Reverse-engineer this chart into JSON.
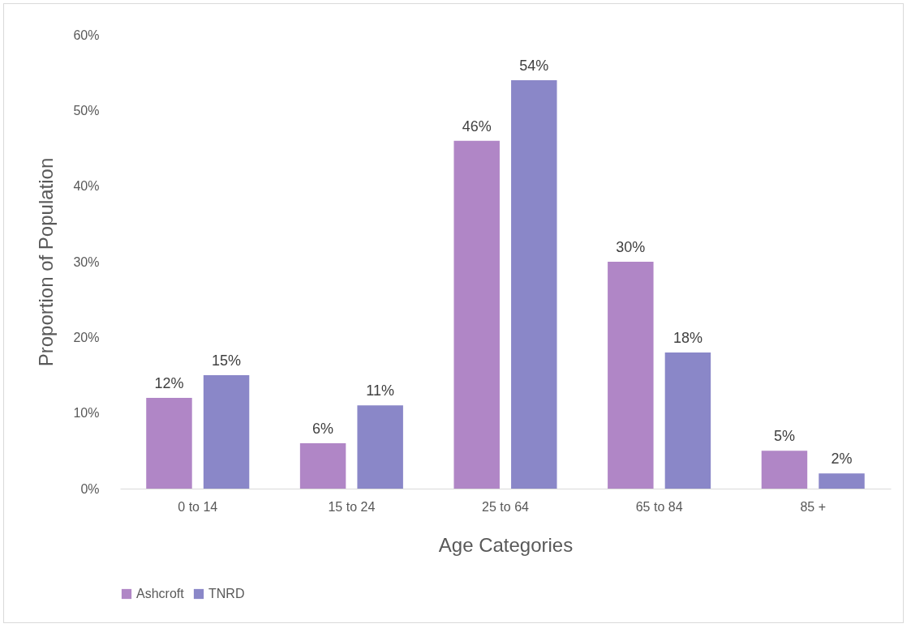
{
  "chart_data": {
    "type": "bar",
    "xlabel": "Age Categories",
    "ylabel": "Proportion of Population",
    "categories": [
      "0 to 14",
      "15 to 24",
      "25 to 64",
      "65 to 84",
      "85 +"
    ],
    "series": [
      {
        "name": "Ashcroft",
        "color": "#b086c6",
        "values": [
          12,
          6,
          46,
          30,
          5
        ],
        "value_labels": [
          "12%",
          "6%",
          "46%",
          "30%",
          "5%"
        ]
      },
      {
        "name": "TNRD",
        "color": "#8a87c8",
        "values": [
          15,
          11,
          54,
          18,
          2
        ],
        "value_labels": [
          "15%",
          "11%",
          "54%",
          "18%",
          "2%"
        ]
      }
    ],
    "ylim": [
      0,
      60
    ],
    "yticks": [
      {
        "value": 0,
        "label": "0%"
      },
      {
        "value": 10,
        "label": "10%"
      },
      {
        "value": 20,
        "label": "20%"
      },
      {
        "value": 30,
        "label": "30%"
      },
      {
        "value": 40,
        "label": "40%"
      },
      {
        "value": 50,
        "label": "50%"
      },
      {
        "value": 60,
        "label": "60%"
      }
    ],
    "grid": false,
    "legend": "bottom"
  }
}
